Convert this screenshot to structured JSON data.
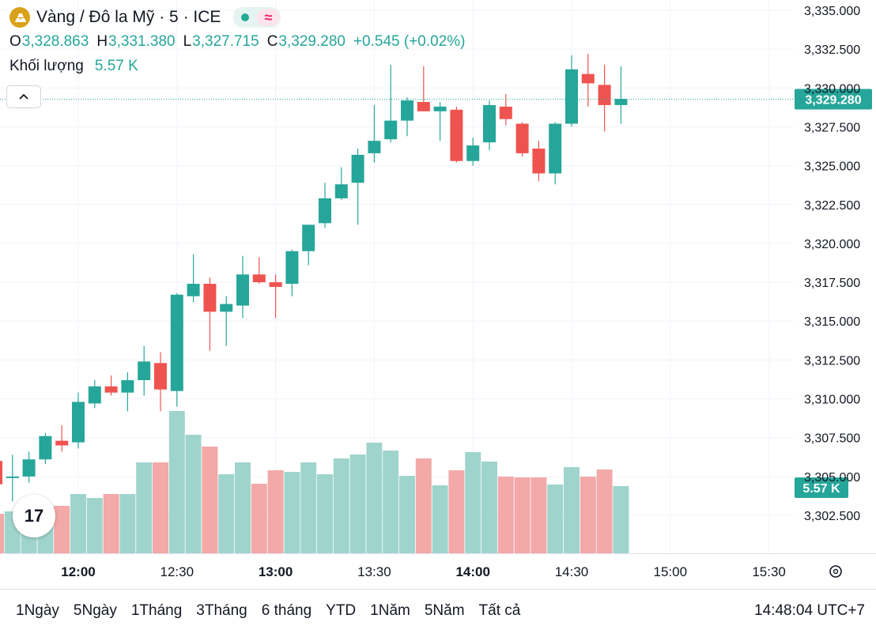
{
  "header": {
    "symbol_title": "Vàng / Đô la Mỹ · 5 · ICE",
    "logo_icon": "gold-bars-icon",
    "status_icon": "market-open-dot-icon",
    "delay_glyph": "≈",
    "ohlc": {
      "o_label": "O",
      "o_value": "3,328.863",
      "h_label": "H",
      "h_value": "3,331.380",
      "l_label": "L",
      "l_value": "3,327.715",
      "c_label": "C",
      "c_value": "3,329.280",
      "change": "+0.545 (+0.02%)"
    },
    "volume_label": "Khối lượng",
    "volume_value": "5.57 K",
    "collapse_icon": "chevron-up-icon"
  },
  "chart_data": {
    "type": "candlestick",
    "up_color": "#26a69a",
    "down_color": "#ef5350",
    "y_ticks": [
      "3,335.000",
      "3,332.500",
      "3,330.000",
      "3,327.500",
      "3,325.000",
      "3,322.500",
      "3,320.000",
      "3,317.500",
      "3,315.000",
      "3,312.500",
      "3,310.000",
      "3,307.500",
      "3,305.000",
      "3,302.500"
    ],
    "y_tick_values": [
      3335,
      3332.5,
      3330,
      3327.5,
      3325,
      3322.5,
      3320,
      3317.5,
      3315,
      3312.5,
      3310,
      3307.5,
      3305,
      3302.5
    ],
    "x_ticks": [
      "12:00",
      "12:30",
      "13:00",
      "13:30",
      "14:00",
      "14:30",
      "15:00",
      "15:30"
    ],
    "x_tick_times": [
      "12:00",
      "12:30",
      "13:00",
      "13:30",
      "14:00",
      "14:30",
      "15:00",
      "15:30"
    ],
    "x_bold": [
      true,
      false,
      true,
      false,
      true,
      false,
      false,
      false
    ],
    "last_price_label": "3,329.280",
    "last_price": 3329.28,
    "last_volume_label": "5.57 K",
    "candles": [
      {
        "t": "11:35",
        "o": 3306.0,
        "h": 3306.8,
        "l": 3303.6,
        "c": 3304.5,
        "v": 0.5
      },
      {
        "t": "11:40",
        "o": 3305.0,
        "h": 3306.4,
        "l": 3303.4,
        "c": 3305.0,
        "v": 0.53
      },
      {
        "t": "11:45",
        "o": 3305.0,
        "h": 3306.6,
        "l": 3304.6,
        "c": 3306.1,
        "v": 0.66
      },
      {
        "t": "11:50",
        "o": 3306.1,
        "h": 3307.8,
        "l": 3305.8,
        "c": 3307.6,
        "v": 0.6
      },
      {
        "t": "11:55",
        "o": 3307.3,
        "h": 3308.3,
        "l": 3306.6,
        "c": 3307.0,
        "v": 0.6
      },
      {
        "t": "12:00",
        "o": 3307.2,
        "h": 3310.4,
        "l": 3306.8,
        "c": 3309.8,
        "v": 0.75
      },
      {
        "t": "12:05",
        "o": 3309.7,
        "h": 3311.2,
        "l": 3309.4,
        "c": 3310.8,
        "v": 0.7
      },
      {
        "t": "12:10",
        "o": 3310.8,
        "h": 3311.5,
        "l": 3310.2,
        "c": 3310.4,
        "v": 0.75
      },
      {
        "t": "12:15",
        "o": 3310.4,
        "h": 3311.7,
        "l": 3309.2,
        "c": 3311.2,
        "v": 0.75
      },
      {
        "t": "12:20",
        "o": 3311.2,
        "h": 3313.4,
        "l": 3310.2,
        "c": 3312.4,
        "v": 1.15
      },
      {
        "t": "12:25",
        "o": 3312.3,
        "h": 3313.0,
        "l": 3309.2,
        "c": 3310.6,
        "v": 1.15
      },
      {
        "t": "12:30",
        "o": 3310.5,
        "h": 3316.8,
        "l": 3309.5,
        "c": 3316.7,
        "v": 1.8
      },
      {
        "t": "12:35",
        "o": 3316.6,
        "h": 3319.3,
        "l": 3316.2,
        "c": 3317.4,
        "v": 1.5
      },
      {
        "t": "12:40",
        "o": 3317.4,
        "h": 3317.8,
        "l": 3313.1,
        "c": 3315.6,
        "v": 1.35
      },
      {
        "t": "12:45",
        "o": 3315.6,
        "h": 3316.6,
        "l": 3313.4,
        "c": 3316.1,
        "v": 1.0
      },
      {
        "t": "12:50",
        "o": 3316.0,
        "h": 3319.2,
        "l": 3315.2,
        "c": 3318.0,
        "v": 1.15
      },
      {
        "t": "12:55",
        "o": 3318.0,
        "h": 3319.1,
        "l": 3317.4,
        "c": 3317.5,
        "v": 0.88
      },
      {
        "t": "13:00",
        "o": 3317.5,
        "h": 3318.0,
        "l": 3315.2,
        "c": 3317.2,
        "v": 1.05
      },
      {
        "t": "13:05",
        "o": 3317.4,
        "h": 3319.6,
        "l": 3316.6,
        "c": 3319.5,
        "v": 1.03
      },
      {
        "t": "13:10",
        "o": 3319.5,
        "h": 3321.2,
        "l": 3318.6,
        "c": 3321.2,
        "v": 1.15
      },
      {
        "t": "13:15",
        "o": 3321.3,
        "h": 3323.9,
        "l": 3321.0,
        "c": 3322.9,
        "v": 1.0
      },
      {
        "t": "13:20",
        "o": 3322.9,
        "h": 3324.9,
        "l": 3322.8,
        "c": 3323.8,
        "v": 1.2
      },
      {
        "t": "13:25",
        "o": 3323.9,
        "h": 3326.1,
        "l": 3321.2,
        "c": 3325.7,
        "v": 1.25
      },
      {
        "t": "13:30",
        "o": 3325.8,
        "h": 3328.9,
        "l": 3325.2,
        "c": 3326.6,
        "v": 1.4
      },
      {
        "t": "13:35",
        "o": 3326.7,
        "h": 3331.5,
        "l": 3326.5,
        "c": 3327.9,
        "v": 1.3
      },
      {
        "t": "13:40",
        "o": 3327.9,
        "h": 3329.4,
        "l": 3326.9,
        "c": 3329.2,
        "v": 0.98
      },
      {
        "t": "13:45",
        "o": 3329.1,
        "h": 3331.4,
        "l": 3328.5,
        "c": 3328.5,
        "v": 1.2
      },
      {
        "t": "13:50",
        "o": 3328.5,
        "h": 3329.1,
        "l": 3326.6,
        "c": 3328.8,
        "v": 0.86
      },
      {
        "t": "13:55",
        "o": 3328.6,
        "h": 3328.8,
        "l": 3325.2,
        "c": 3325.3,
        "v": 1.05
      },
      {
        "t": "14:00",
        "o": 3325.3,
        "h": 3326.8,
        "l": 3325.0,
        "c": 3326.3,
        "v": 1.28
      },
      {
        "t": "14:05",
        "o": 3326.5,
        "h": 3329.2,
        "l": 3326.0,
        "c": 3328.9,
        "v": 1.16
      },
      {
        "t": "14:10",
        "o": 3328.8,
        "h": 3329.6,
        "l": 3327.6,
        "c": 3328.0,
        "v": 0.97
      },
      {
        "t": "14:15",
        "o": 3327.7,
        "h": 3327.8,
        "l": 3325.6,
        "c": 3325.8,
        "v": 0.96
      },
      {
        "t": "14:20",
        "o": 3326.1,
        "h": 3326.6,
        "l": 3324.0,
        "c": 3324.5,
        "v": 0.96
      },
      {
        "t": "14:25",
        "o": 3324.5,
        "h": 3327.8,
        "l": 3323.8,
        "c": 3327.7,
        "v": 0.87
      },
      {
        "t": "14:30",
        "o": 3327.7,
        "h": 3332.1,
        "l": 3327.5,
        "c": 3331.2,
        "v": 1.09
      },
      {
        "t": "14:35",
        "o": 3330.9,
        "h": 3332.2,
        "l": 3328.8,
        "c": 3330.3,
        "v": 0.97
      },
      {
        "t": "14:40",
        "o": 3330.2,
        "h": 3331.5,
        "l": 3327.2,
        "c": 3328.9,
        "v": 1.06
      },
      {
        "t": "14:45",
        "o": 3328.9,
        "h": 3331.4,
        "l": 3327.7,
        "c": 3329.3,
        "v": 0.85
      }
    ]
  },
  "range_buttons": [
    "1Ngày",
    "5Ngày",
    "1Tháng",
    "3Tháng",
    "6 tháng",
    "YTD",
    "1Năm",
    "5Năm",
    "Tất cả"
  ],
  "clock": "14:48:04 UTC+7",
  "settings_icon": "gear-icon",
  "tv_logo_text": "17",
  "tv_logo_icon": "tradingview-logo-icon"
}
